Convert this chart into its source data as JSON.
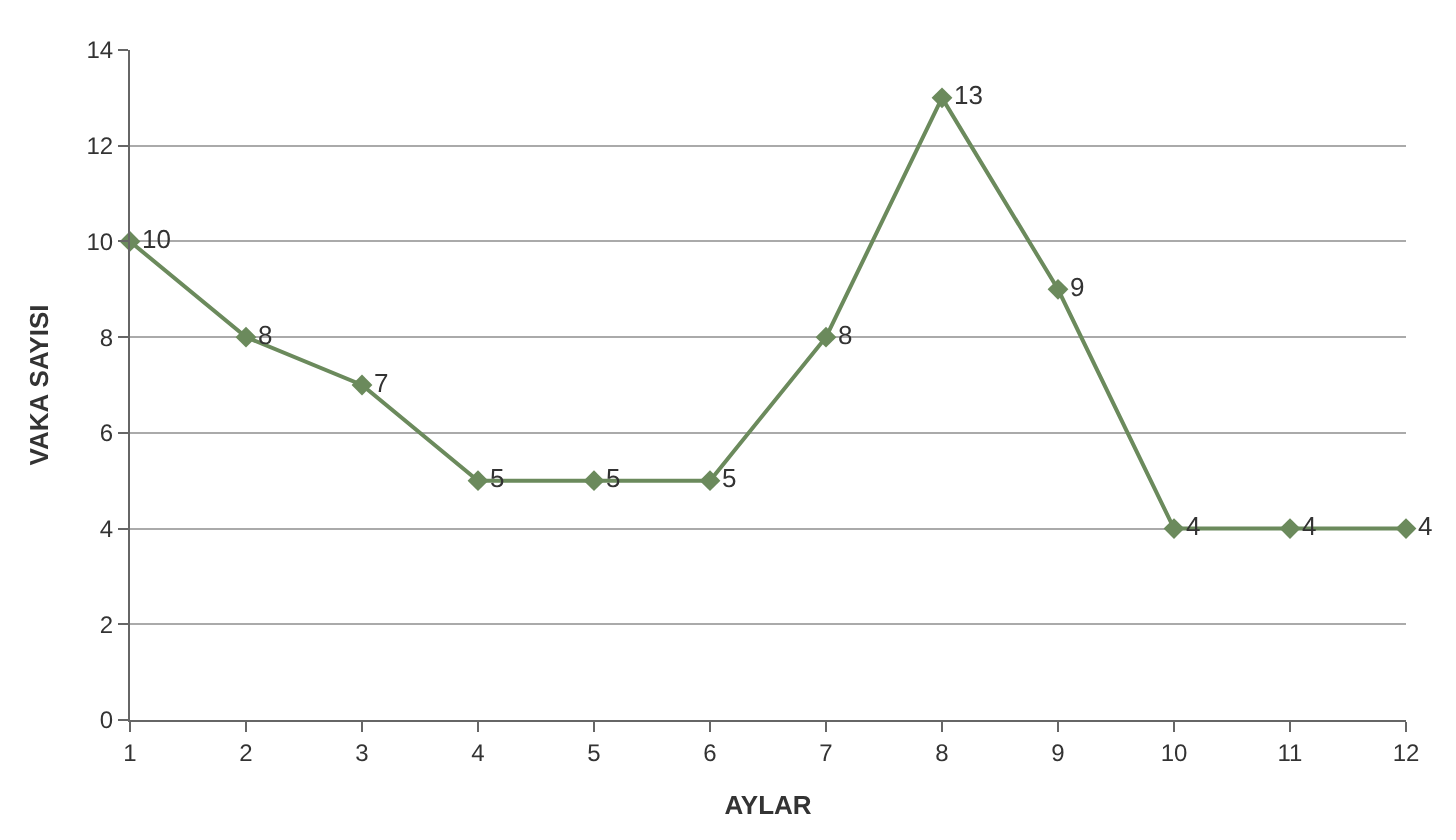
{
  "chart_data": {
    "type": "line",
    "xlabel": "AYLAR",
    "ylabel": "VAKA SAYISI",
    "x": [
      1,
      2,
      3,
      4,
      5,
      6,
      7,
      8,
      9,
      10,
      11,
      12
    ],
    "series": [
      {
        "color": "#6b8a5c",
        "values": [
          10,
          8,
          7,
          5,
          5,
          5,
          8,
          13,
          9,
          4,
          4,
          4
        ]
      }
    ],
    "xlim": [
      1,
      12
    ],
    "xticks": [
      1,
      2,
      3,
      4,
      5,
      6,
      7,
      8,
      9,
      10,
      11,
      12
    ],
    "ylim": [
      0,
      14
    ],
    "yticks": [
      0,
      2,
      4,
      6,
      8,
      10,
      12,
      14
    ],
    "grid": "y",
    "marker": "diamond",
    "line_style": "solid",
    "data_labels": true
  }
}
